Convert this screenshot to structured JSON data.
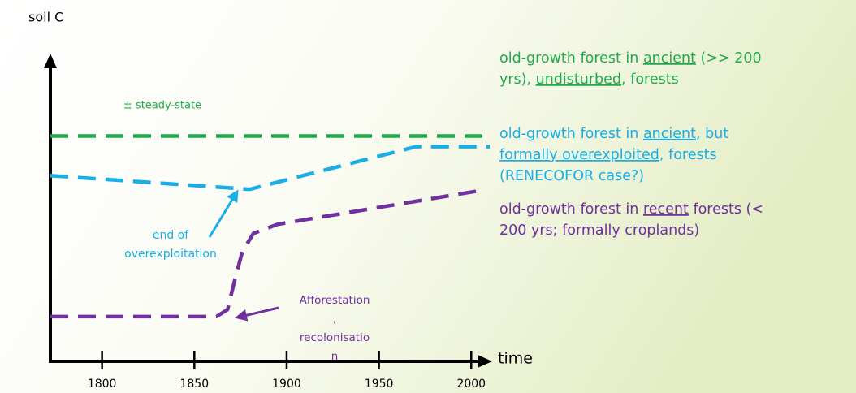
{
  "chart_data": {
    "type": "line",
    "y_label": "soil C",
    "x_label": "time",
    "xlim": [
      1772,
      2010
    ],
    "xticks": [
      1800,
      1850,
      1900,
      1950,
      2000
    ],
    "ylim": [
      0,
      100
    ],
    "series": [
      {
        "color": "#1fab4b",
        "x": [
          1772,
          2010
        ],
        "values": [
          74,
          74
        ]
      },
      {
        "color": "#1aaee6",
        "x": [
          1772,
          1880,
          1970,
          2010
        ],
        "values": [
          61,
          56.5,
          70.5,
          70.5
        ]
      },
      {
        "color": "#7030a0",
        "x": [
          1772,
          1862,
          1868,
          1872,
          1876,
          1882,
          1895,
          2004
        ],
        "values": [
          14.7,
          14.7,
          17,
          27,
          36,
          42,
          45,
          56
        ]
      }
    ],
    "legend": [
      {
        "color": "#1fab4b",
        "lines": [
          [
            {
              "text": "old-growth forest in "
            },
            {
              "text": "ancient",
              "underline": true
            },
            {
              "text": " (>> 200"
            }
          ],
          [
            {
              "text": "yrs), "
            },
            {
              "text": "undisturbed",
              "underline": true
            },
            {
              "text": ", forests"
            }
          ]
        ]
      },
      {
        "color": "#1aaee6",
        "lines": [
          [
            {
              "text": "old-growth forest in "
            },
            {
              "text": "ancient",
              "underline": true
            },
            {
              "text": ", but"
            }
          ],
          [
            {
              "text": "formally overexploited",
              "underline": true
            },
            {
              "text": ", forests"
            }
          ],
          [
            {
              "text": "(RENECOFOR case?)"
            }
          ]
        ]
      },
      {
        "color": "#7030a0",
        "lines": [
          [
            {
              "text": "old-growth forest in "
            },
            {
              "text": "recent",
              "underline": true
            },
            {
              "text": " forests (<"
            }
          ],
          [
            {
              "text": "200 yrs; formally croplands)"
            }
          ]
        ]
      }
    ],
    "annotations": [
      {
        "color": "#1fab4b",
        "lines": [
          "± steady-state"
        ]
      },
      {
        "color": "#1aaee6",
        "lines": [
          "end of",
          "overexploitation"
        ]
      },
      {
        "color": "#7030a0",
        "lines": [
          "Afforestation",
          ",",
          "recolonisatio",
          "n"
        ]
      }
    ]
  }
}
